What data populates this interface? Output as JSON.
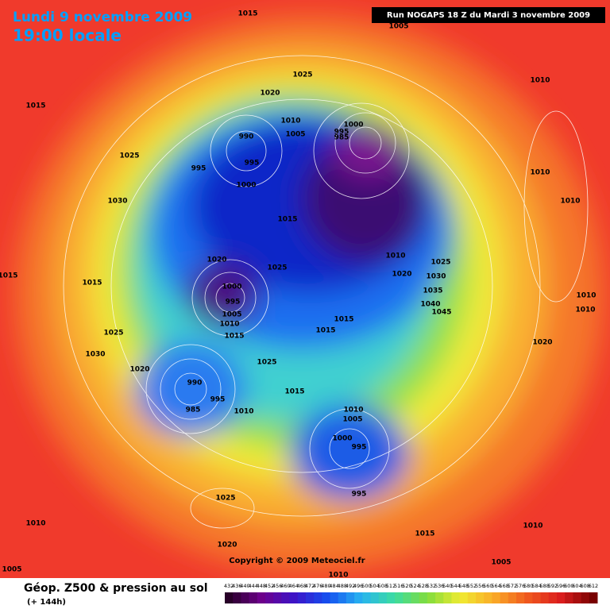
{
  "header": {
    "date": "Lundi 9 novembre 2009",
    "time": "19:00 locale",
    "run": "Run NOGAPS 18 Z du Mardi 3 novembre 2009"
  },
  "map": {
    "pressure_labels": [
      1015,
      1005,
      1025,
      1020,
      1015,
      1010,
      1010,
      1005,
      990,
      995,
      1000,
      995,
      985,
      1025,
      995,
      1000,
      1010,
      1010,
      1030,
      1015,
      1010,
      1025,
      1020,
      1030,
      1015,
      1020,
      1025,
      1000,
      995,
      1005,
      1010,
      1015,
      1035,
      1040,
      1045,
      1010,
      1010,
      1015,
      1015,
      1015,
      1025,
      1020,
      1030,
      1025,
      1020,
      990,
      1015,
      995,
      985,
      1010,
      1010,
      1005,
      1000,
      995,
      995,
      1025,
      1010,
      1015,
      1020,
      1010,
      1005,
      1005,
      1010
    ],
    "copyright": "Copyright © 2009 Meteociel.fr"
  },
  "legend": {
    "title": "Géop. Z500 & pression au sol",
    "subtitle": "(+ 144h)",
    "scale": [
      432,
      436,
      440,
      444,
      448,
      452,
      456,
      460,
      464,
      468,
      472,
      476,
      480,
      484,
      488,
      492,
      496,
      500,
      504,
      508,
      512,
      516,
      520,
      524,
      528,
      532,
      536,
      540,
      544,
      548,
      552,
      556,
      560,
      564,
      568,
      572,
      576,
      580,
      584,
      588,
      592,
      596,
      600,
      604,
      608,
      612
    ]
  }
}
